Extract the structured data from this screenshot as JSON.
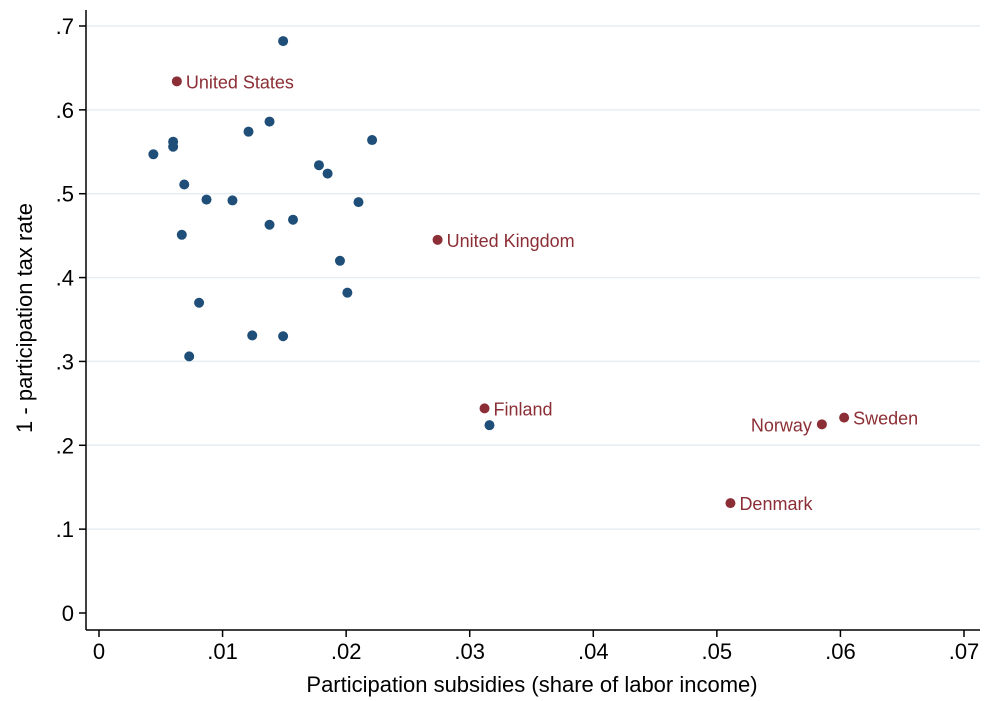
{
  "chart_data": {
    "type": "scatter",
    "title": "",
    "xlabel": "Participation subsidies (share of labor income)",
    "ylabel": "1 - participation tax rate",
    "xlim": [
      0,
      0.07
    ],
    "ylim": [
      0,
      0.7
    ],
    "xticks": [
      {
        "value": 0,
        "label": "0"
      },
      {
        "value": 0.01,
        "label": ".01"
      },
      {
        "value": 0.02,
        "label": ".02"
      },
      {
        "value": 0.03,
        "label": ".03"
      },
      {
        "value": 0.04,
        "label": ".04"
      },
      {
        "value": 0.05,
        "label": ".05"
      },
      {
        "value": 0.06,
        "label": ".06"
      },
      {
        "value": 0.07,
        "label": ".07"
      }
    ],
    "yticks": [
      {
        "value": 0,
        "label": "0"
      },
      {
        "value": 0.1,
        "label": ".1"
      },
      {
        "value": 0.2,
        "label": ".2"
      },
      {
        "value": 0.3,
        "label": ".3"
      },
      {
        "value": 0.4,
        "label": ".4"
      },
      {
        "value": 0.5,
        "label": ".5"
      },
      {
        "value": 0.6,
        "label": ".6"
      },
      {
        "value": 0.7,
        "label": ".7"
      }
    ],
    "grid": true,
    "colors": {
      "unlabeled": "#1f4e79",
      "labeled": "#8b2e35",
      "grid": "#e6eef3"
    },
    "points": [
      {
        "x": 0.0149,
        "y": 0.682
      },
      {
        "x": 0.0044,
        "y": 0.547
      },
      {
        "x": 0.006,
        "y": 0.562
      },
      {
        "x": 0.006,
        "y": 0.556
      },
      {
        "x": 0.0069,
        "y": 0.511
      },
      {
        "x": 0.0087,
        "y": 0.493
      },
      {
        "x": 0.0108,
        "y": 0.492
      },
      {
        "x": 0.0121,
        "y": 0.574
      },
      {
        "x": 0.0138,
        "y": 0.586
      },
      {
        "x": 0.0178,
        "y": 0.534
      },
      {
        "x": 0.0185,
        "y": 0.524
      },
      {
        "x": 0.0221,
        "y": 0.564
      },
      {
        "x": 0.0067,
        "y": 0.451
      },
      {
        "x": 0.0138,
        "y": 0.463
      },
      {
        "x": 0.0157,
        "y": 0.469
      },
      {
        "x": 0.021,
        "y": 0.49
      },
      {
        "x": 0.0195,
        "y": 0.42
      },
      {
        "x": 0.0201,
        "y": 0.382
      },
      {
        "x": 0.0081,
        "y": 0.37
      },
      {
        "x": 0.0124,
        "y": 0.331
      },
      {
        "x": 0.0149,
        "y": 0.33
      },
      {
        "x": 0.0073,
        "y": 0.306
      },
      {
        "x": 0.0316,
        "y": 0.224
      }
    ],
    "labeled_points": [
      {
        "label": "United States",
        "x": 0.0063,
        "y": 0.634,
        "side": "right"
      },
      {
        "label": "United Kingdom",
        "x": 0.0274,
        "y": 0.445,
        "side": "right"
      },
      {
        "label": "Finland",
        "x": 0.0312,
        "y": 0.244,
        "side": "right"
      },
      {
        "label": "Norway",
        "x": 0.0585,
        "y": 0.225,
        "side": "left"
      },
      {
        "label": "Sweden",
        "x": 0.0603,
        "y": 0.233,
        "side": "right"
      },
      {
        "label": "Denmark",
        "x": 0.0511,
        "y": 0.131,
        "side": "right"
      }
    ]
  }
}
